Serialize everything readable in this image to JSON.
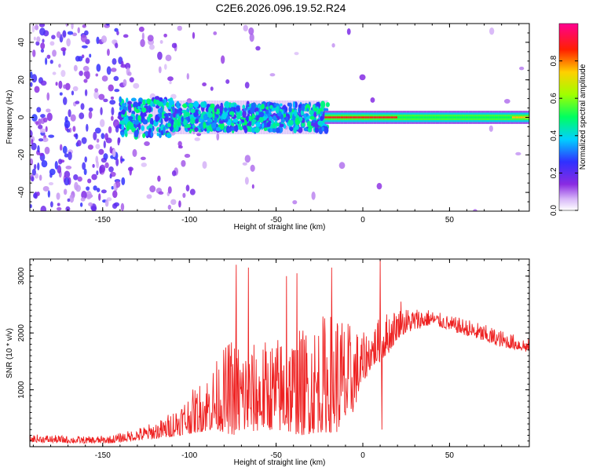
{
  "title": "C2E6.2026.096.19.52.R24",
  "colors": {
    "signal": "#ee2222",
    "axis": "#000000"
  },
  "chart_data": [
    {
      "type": "heatmap",
      "xlabel": "Height of straight line (km)",
      "ylabel": "Frequency (Hz)",
      "xlim": [
        -192,
        96
      ],
      "ylim": [
        -50,
        50
      ],
      "xticks": [
        -150,
        -100,
        -50,
        0,
        50
      ],
      "yticks": [
        -40,
        -20,
        0,
        20,
        40
      ],
      "colorbar": {
        "label": "Normalized spectral amplitude",
        "range": [
          0,
          1
        ],
        "ticks": [
          0.0,
          0.2,
          0.4,
          0.6,
          0.8
        ],
        "colormap": "rainbow (white → purple → blue → cyan → green → yellow → red → magenta)"
      },
      "grid": false
    },
    {
      "type": "line",
      "xlabel": "Height of straight line (km)",
      "ylabel": "SNR (10 * v/v)",
      "xlim": [
        -192,
        96
      ],
      "ylim": [
        0,
        3300
      ],
      "xticks": [
        -150,
        -100,
        -50,
        0,
        50
      ],
      "yticks": [
        1000,
        2000,
        3000
      ],
      "grid": false,
      "series": [
        {
          "color": "#ee2222",
          "envelope_x": [
            -192,
            -160,
            -145,
            -135,
            -125,
            -115,
            -105,
            -95,
            -85,
            -75,
            -65,
            -55,
            -45,
            -35,
            -25,
            -15,
            -8,
            0,
            5,
            10,
            15,
            20,
            25,
            30,
            35,
            40,
            45,
            50,
            60,
            70,
            80,
            90,
            96
          ],
          "envelope_low": [
            80,
            60,
            60,
            100,
            120,
            150,
            200,
            250,
            300,
            200,
            250,
            300,
            250,
            200,
            250,
            250,
            400,
            1100,
            1400,
            1500,
            1650,
            1900,
            2000,
            2050,
            2100,
            2150,
            2100,
            2050,
            1950,
            1850,
            1750,
            1700,
            1650
          ],
          "envelope_high": [
            220,
            180,
            200,
            280,
            380,
            500,
            800,
            1100,
            1500,
            2000,
            1800,
            1900,
            2000,
            2100,
            2300,
            2500,
            2200,
            2000,
            2100,
            2300,
            2400,
            2450,
            2450,
            2450,
            2450,
            2400,
            2350,
            2300,
            2250,
            2150,
            2050,
            1950,
            1900
          ],
          "peaks": [
            {
              "x": -73,
              "y": 3200
            },
            {
              "x": -66,
              "y": 3150
            },
            {
              "x": -44,
              "y": 3000
            },
            {
              "x": -38,
              "y": 3050
            },
            {
              "x": -18,
              "y": 3150
            },
            {
              "x": 10,
              "y": 3300
            },
            {
              "x": 11,
              "y": 300
            },
            {
              "x": 22,
              "y": 2550
            }
          ]
        }
      ]
    }
  ]
}
